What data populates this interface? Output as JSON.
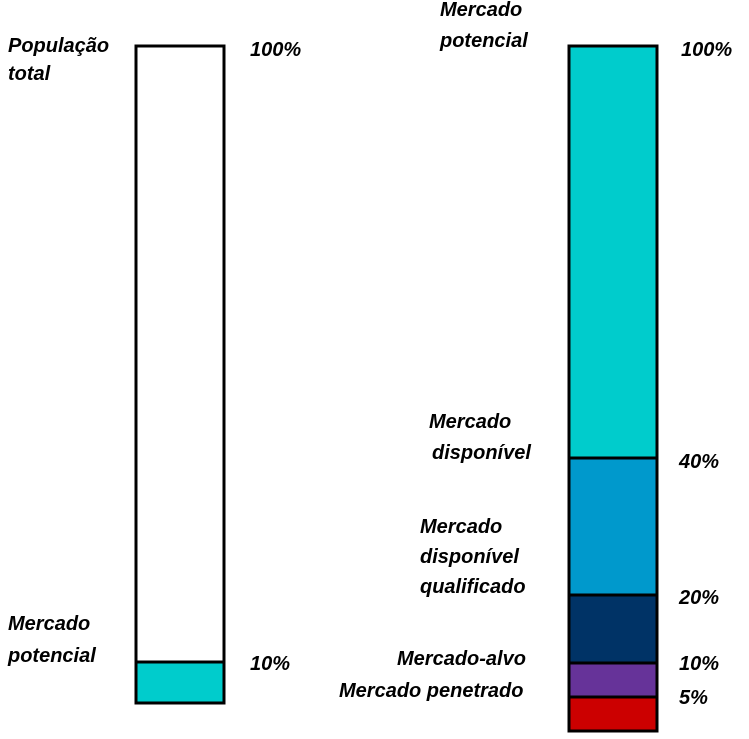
{
  "chart_data": [
    {
      "type": "bar",
      "stacked": true,
      "title": "",
      "ylim": [
        0,
        100
      ],
      "top_label": [
        "População",
        "total"
      ],
      "top_percent": "100%",
      "segments": [
        {
          "name": "Mercado potencial",
          "label": [
            "Mercado",
            "potencial"
          ],
          "value": 10,
          "percent": "10%",
          "color": "#00CCCC"
        },
        {
          "name": "População total",
          "value": 100,
          "color": "#FFFFFF"
        }
      ]
    },
    {
      "type": "bar",
      "stacked": true,
      "title": "",
      "ylim": [
        0,
        100
      ],
      "top_label": [
        "Mercado",
        "potencial"
      ],
      "top_percent": "100%",
      "segments": [
        {
          "name": "Mercado penetrado",
          "label": [
            "Mercado penetrado"
          ],
          "value": 5,
          "percent": "5%",
          "color": "#CC0000"
        },
        {
          "name": "Mercado-alvo",
          "label": [
            "Mercado-alvo"
          ],
          "value": 10,
          "percent": "10%",
          "color": "#663399"
        },
        {
          "name": "Mercado disponível qualificado",
          "label": [
            "Mercado",
            "disponível",
            "qualificado"
          ],
          "value": 20,
          "percent": "20%",
          "color": "#003366"
        },
        {
          "name": "Mercado disponível",
          "label": [
            "Mercado",
            "disponível"
          ],
          "value": 40,
          "percent": "40%",
          "color": "#0099CC"
        },
        {
          "name": "Mercado potencial",
          "value": 100,
          "color": "#00CCCC"
        }
      ]
    }
  ]
}
